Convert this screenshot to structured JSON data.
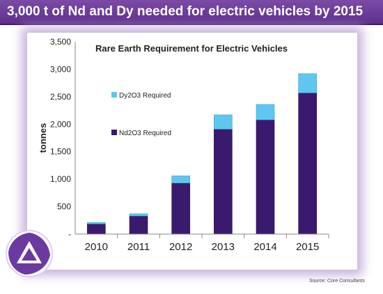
{
  "header": {
    "title": "3,000 t of Nd and Dy needed for electric vehicles by 2015"
  },
  "colors": {
    "header_bg": "#5d2f8c",
    "nd": "#3a1a6e",
    "dy": "#5ec6ef",
    "frame_glow": "#c9b3e0"
  },
  "logo": {
    "name": "logo-icon"
  },
  "source": "Source: Core Consultants",
  "chart_data": {
    "type": "bar",
    "stacked": true,
    "title": "Rare Earth Requirement for Electric Vehicles",
    "xlabel": "",
    "ylabel": "tonnes",
    "categories": [
      "2010",
      "2011",
      "2012",
      "2013",
      "2014",
      "2015"
    ],
    "series": [
      {
        "name": "Nd2O3 Required",
        "values": [
          185,
          330,
          930,
          1910,
          2080,
          2570
        ],
        "color": "#3a1a6e"
      },
      {
        "name": "Dy2O3 Required",
        "values": [
          25,
          40,
          130,
          260,
          280,
          350
        ],
        "color": "#5ec6ef"
      }
    ],
    "ylim": [
      0,
      3500
    ],
    "yticks": [
      "-",
      "500",
      "1,000",
      "1,500",
      "2,000",
      "2,500",
      "3,000",
      "3,500"
    ],
    "ytick_values": [
      0,
      500,
      1000,
      1500,
      2000,
      2500,
      3000,
      3500
    ],
    "grid": false,
    "legend_position": "left"
  }
}
